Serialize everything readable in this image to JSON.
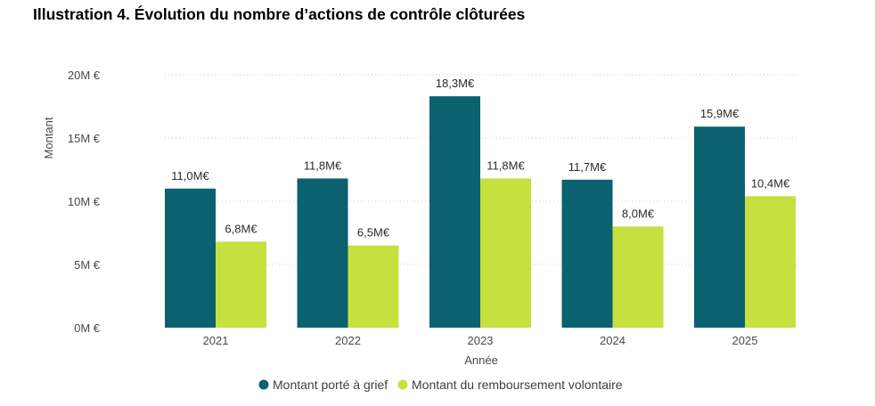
{
  "chart_data": {
    "type": "bar",
    "title": "Illustration 4. Évolution du nombre d’actions de contrôle clôturées",
    "xlabel": "Année",
    "ylabel": "Montant",
    "categories": [
      "2021",
      "2022",
      "2023",
      "2024",
      "2025"
    ],
    "ylim": [
      0,
      20
    ],
    "yticks": [
      0,
      5,
      10,
      15,
      20
    ],
    "ytick_labels": [
      "0M €",
      "5M €",
      "10M €",
      "15M €",
      "20M €"
    ],
    "grid": true,
    "legend_position": "bottom",
    "series": [
      {
        "name": "Montant porté à grief",
        "color": "#0b6170",
        "values": [
          11.0,
          11.8,
          18.3,
          11.7,
          15.9
        ],
        "labels": [
          "11,0M€",
          "11,8M€",
          "18,3M€",
          "11,7M€",
          "15,9M€"
        ]
      },
      {
        "name": "Montant du remboursement volontaire",
        "color": "#c5e03f",
        "values": [
          6.8,
          6.5,
          11.8,
          8.0,
          10.4
        ],
        "labels": [
          "6,8M€",
          "6,5M€",
          "11,8M€",
          "8,0M€",
          "10,4M€"
        ]
      }
    ]
  }
}
